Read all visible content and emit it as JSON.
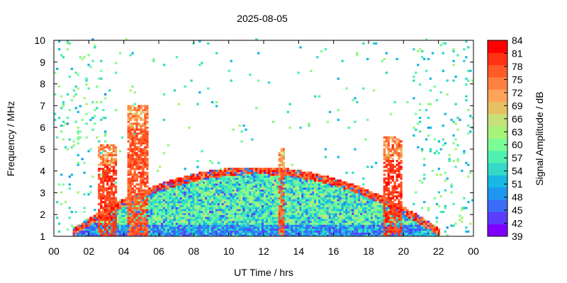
{
  "chart_data": {
    "type": "heatmap",
    "title": "2025-08-05",
    "xlabel": "UT Time / hrs",
    "ylabel": "Frequency / MHz",
    "colorbar_label": "Signal Amplitude / dB",
    "xlim": [
      0,
      24
    ],
    "ylim": [
      1,
      10
    ],
    "x_ticks": [
      "00",
      "02",
      "04",
      "06",
      "08",
      "10",
      "12",
      "14",
      "16",
      "18",
      "20",
      "22",
      "00"
    ],
    "y_ticks": [
      "1",
      "2",
      "3",
      "4",
      "5",
      "6",
      "7",
      "8",
      "9",
      "10"
    ],
    "colorbar_ticks": [
      "39",
      "42",
      "45",
      "48",
      "51",
      "54",
      "57",
      "60",
      "63",
      "66",
      "69",
      "72",
      "75",
      "78",
      "81",
      "84"
    ],
    "zlim": [
      39,
      84
    ],
    "colors": [
      "#8000ff",
      "#5a3cff",
      "#3b6cf9",
      "#1f96f0",
      "#17b9e4",
      "#34d9c8",
      "#4ef1b0",
      "#7cfc95",
      "#a6f47a",
      "#c8e07a",
      "#e6c062",
      "#ffa45a",
      "#ff8040",
      "#ff5a28",
      "#ff3214",
      "#ff0000"
    ],
    "grid": false,
    "legend": "colorbar-right",
    "regions": [
      {
        "name": "daytime band",
        "t_start": 1.0,
        "t_end": 22.0,
        "f_low": 1.0,
        "f_high_peak": 4.0,
        "level_db": 58
      },
      {
        "name": "storm burst",
        "t_start": 2.5,
        "t_end": 3.6,
        "f_high": 5.2,
        "level_db": 82
      },
      {
        "name": "storm burst",
        "t_start": 4.2,
        "t_end": 5.3,
        "f_high": 7.0,
        "level_db": 80
      },
      {
        "name": "storm burst",
        "t_start": 18.8,
        "t_end": 19.8,
        "f_high": 5.5,
        "level_db": 82
      },
      {
        "name": "spike",
        "t_start": 12.8,
        "t_end": 13.1,
        "f_high": 5.0,
        "level_db": 80
      }
    ]
  }
}
